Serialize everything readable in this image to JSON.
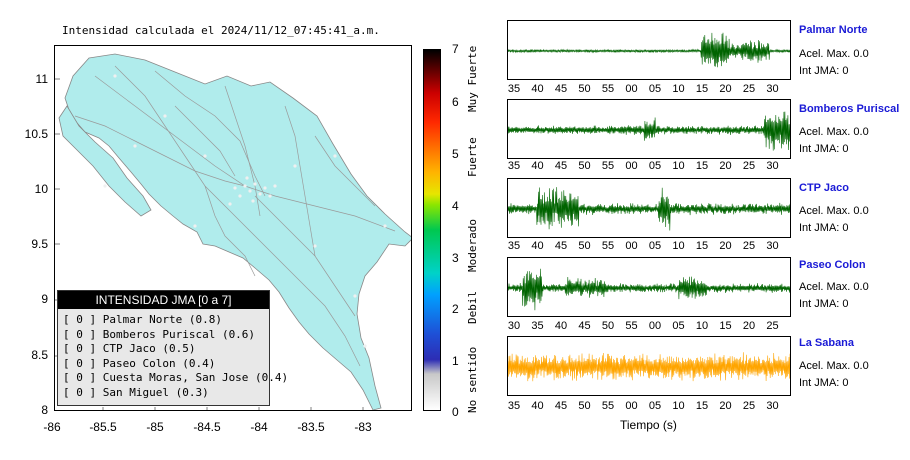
{
  "title": "Intensidad calculada el 2024/11/12_07:45:41_a.m.",
  "map": {
    "yticks": [
      "11",
      "10.5",
      "10",
      "9.5",
      "9",
      "8.5",
      "8"
    ],
    "xticks": [
      "-86",
      "-85.5",
      "-85",
      "-84.5",
      "-84",
      "-83.5",
      "-83"
    ],
    "land_color": "#b0ecec"
  },
  "legend": {
    "title": "INTENSIDAD JMA [0 a 7]",
    "rows": [
      "[ 0 ]  Palmar Norte (0.8)",
      "[ 0 ]  Bomberos Puriscal (0.6)",
      "[ 0 ]  CTP Jaco (0.5)",
      "[ 0 ]  Paseo Colon (0.4)",
      "[ 0 ]  Cuesta Moras, San Jose (0.4)",
      "[ 0 ]  San Miguel (0.3)"
    ]
  },
  "colorbar": {
    "ticks": [
      "7",
      "6",
      "5",
      "4",
      "3",
      "2",
      "1",
      "0"
    ],
    "categories": [
      "Muy Fuerte",
      "Fuerte",
      "Moderado",
      "Debil",
      "No sentido"
    ]
  },
  "traces": [
    {
      "station": "Palmar Norte",
      "acc": "Acel. Max. 0.0",
      "int": "Int JMA: 0",
      "ticks": [
        "35",
        "40",
        "45",
        "50",
        "55",
        "00",
        "05",
        "10",
        "15",
        "20",
        "25",
        "30"
      ],
      "color": "#006400"
    },
    {
      "station": "Bomberos Puriscal",
      "acc": "Acel. Max. 0.0",
      "int": "Int JMA: 0",
      "ticks": [
        "35",
        "40",
        "45",
        "50",
        "55",
        "00",
        "05",
        "10",
        "15",
        "20",
        "25",
        "30"
      ],
      "color": "#006400"
    },
    {
      "station": "CTP Jaco",
      "acc": "Acel. Max. 0.0",
      "int": "Int JMA: 0",
      "ticks": [
        "35",
        "40",
        "45",
        "50",
        "55",
        "00",
        "05",
        "10",
        "15",
        "20",
        "25",
        "30"
      ],
      "color": "#006400"
    },
    {
      "station": "Paseo Colon",
      "acc": "Acel. Max. 0.0",
      "int": "Int JMA: 0",
      "ticks": [
        "30",
        "35",
        "40",
        "45",
        "50",
        "55",
        "00",
        "05",
        "10",
        "15",
        "20",
        "25"
      ],
      "color": "#006400"
    },
    {
      "station": "La Sabana",
      "acc": "Acel. Max. 0.0",
      "int": "Int JMA: 0",
      "ticks": [
        "35",
        "40",
        "45",
        "50",
        "55",
        "00",
        "05",
        "10",
        "15",
        "20",
        "25",
        "30"
      ],
      "color": "#ffa500"
    }
  ],
  "xaxis_label": "Tiempo (s)"
}
